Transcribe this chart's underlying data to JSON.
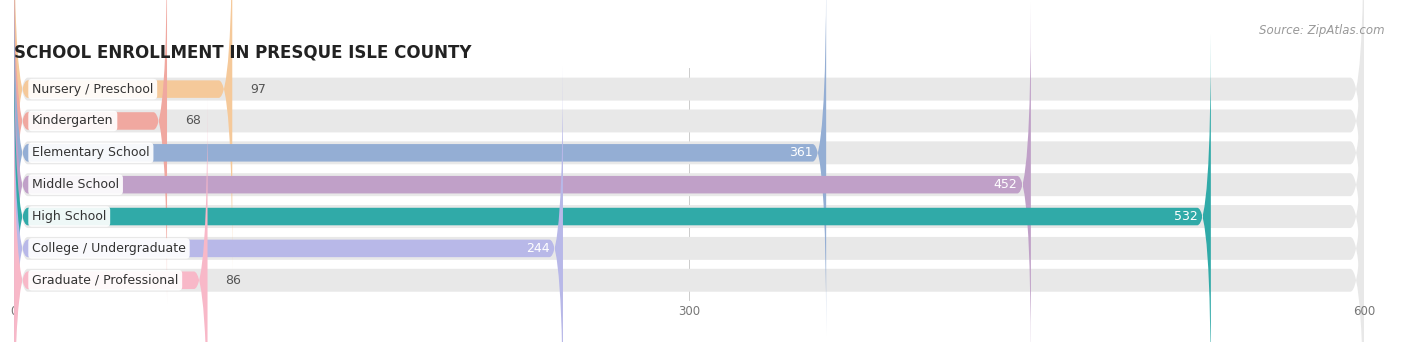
{
  "title": "SCHOOL ENROLLMENT IN PRESQUE ISLE COUNTY",
  "source": "Source: ZipAtlas.com",
  "categories": [
    "Nursery / Preschool",
    "Kindergarten",
    "Elementary School",
    "Middle School",
    "High School",
    "College / Undergraduate",
    "Graduate / Professional"
  ],
  "values": [
    97,
    68,
    361,
    452,
    532,
    244,
    86
  ],
  "bar_colors": [
    "#f5c99a",
    "#f0a8a0",
    "#94aed4",
    "#c0a0c8",
    "#30aaa8",
    "#b8b8e8",
    "#f8b8c8"
  ],
  "bar_bg_color": "#e8e8e8",
  "xlim": [
    0,
    600
  ],
  "xticks": [
    0,
    300,
    600
  ],
  "label_color_dark": "#555555",
  "label_color_white": "#ffffff",
  "title_fontsize": 12,
  "source_fontsize": 8.5,
  "cat_fontsize": 9,
  "value_fontsize": 9,
  "background_color": "#ffffff",
  "bar_height": 0.55,
  "bg_bar_height": 0.72,
  "value_threshold": 150
}
